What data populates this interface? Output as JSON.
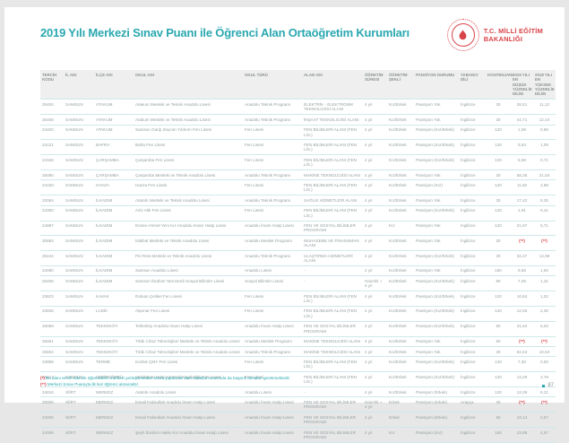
{
  "header": {
    "title": "2019 Yılı Merkezi Sınav Puanı ile Öğrenci Alan Ortaöğretim Kurumları",
    "ministry": {
      "line1": "T.C. MİLLİ EĞİTİM",
      "line2": "BAKANLIĞI"
    }
  },
  "table": {
    "columns": [
      "TERCİH KODU",
      "İL ADI",
      "İLÇE ADI",
      "OKUL ADI",
      "OKUL TÜRÜ",
      "ALAN ADI",
      "ÖĞRETİM SÜRESİ",
      "ÖĞRETİM ŞEKLİ",
      "PANSİYON DURUMU",
      "YABANCI DİLİ",
      "KONTENJANI",
      "2019 YILI EN DÜŞÜK YÜZDELİK DİLİM",
      "2018 YILI EN YÜKSEK YÜZDELİK DİLİM"
    ],
    "col_ids": [
      "tercih-kodu",
      "il-adi",
      "ilce-adi",
      "okul-adi",
      "okul-turu",
      "alan-adi",
      "ogretim-suresi",
      "ogretim-sekli",
      "pansiyon-durumu",
      "yabanci-dili",
      "kontenjan",
      "dilim-2019",
      "dilim-2018"
    ],
    "rows": [
      [
        "25404",
        "SAMSUN",
        "ATAKUM",
        "Atakum Mesleki ve Teknik Anadolu Lisesi",
        "Anadolu Teknik Programı",
        "ELEKTRİK - ELEKTRONİK TEKNOLOJİSİ ALANI",
        "4 yıl",
        "Kız/Erkek",
        "Pansiyon Yok",
        "İngilizce",
        "30",
        "28,51",
        "11,12"
      ],
      [
        "25408",
        "SAMSUN",
        "ATAKUM",
        "Atakum Mesleki ve Teknik Anadolu Lisesi",
        "Anadolu Teknik Programı",
        "İNŞAAT TEKNOLOJİSİ ALANI",
        "4 yıl",
        "Kız/Erkek",
        "Pansiyon Yok",
        "İngilizce",
        "30",
        "44,71",
        "12,44"
      ],
      [
        "24400",
        "SAMSUN",
        "ATAKUM",
        "Samsun Garip Zeycan Yıldırım Fen Lisesi",
        "Fen Lisesi",
        "FEN BİLİMLERİ ALANI (FEN LİS.)",
        "4 yıl",
        "Kız/Erkek",
        "Pansiyon (Kız/Erkek)",
        "İngilizce",
        "120",
        "1,08",
        "0,85"
      ],
      [
        "24131",
        "SAMSUN",
        "BAFRA",
        "Bafra Fen Lisesi",
        "Fen Lisesi",
        "FEN BİLİMLERİ ALANI (FEN LİS.)",
        "4 yıl",
        "Kız/Erkek",
        "Pansiyon (Kız/Erkek)",
        "İngilizce",
        "120",
        "5,84",
        "1,09"
      ],
      [
        "24346",
        "SAMSUN",
        "ÇARŞAMBA",
        "Çarşamba Fen Lisesi",
        "Fen Lisesi",
        "FEN BİLİMLERİ ALANI (FEN LİS.)",
        "4 yıl",
        "Kız/Erkek",
        "Pansiyon (Kız/Erkek)",
        "İngilizce",
        "120",
        "5,58",
        "0,71"
      ],
      [
        "25090",
        "SAMSUN",
        "ÇARŞAMBA",
        "Çarşamba Mesleki ve Teknik Anadolu Lisesi",
        "Anadolu Teknik Programı",
        "MAKİNE TEKNOLOJİSİ ALANI",
        "4 yıl",
        "Kız/Erkek",
        "Pansiyon Yok",
        "İngilizce",
        "30",
        "58,36",
        "21,00"
      ],
      [
        "24150",
        "SAMSUN",
        "HAVZA",
        "Havza Fen Lisesi",
        "Fen Lisesi",
        "FEN BİLİMLERİ ALANI (FEN LİS.)",
        "4 yıl",
        "Kız/Erkek",
        "Pansiyon (Kız)",
        "İngilizce",
        "120",
        "11,92",
        "2,88"
      ],
      [
        "22084",
        "SAMSUN",
        "İLKADIM",
        "Atatürk Mesleki ve Teknik Anadolu Lisesi",
        "Anadolu Teknik Programı",
        "SAĞLIK HİZMETLERİ ALANI",
        "4 yıl",
        "Kız/Erkek",
        "Pansiyon Yok",
        "İngilizce",
        "30",
        "17,42",
        "8,30"
      ],
      [
        "24350",
        "SAMSUN",
        "İLKADIM",
        "Aziz Atik Fen Lisesi",
        "Fen Lisesi",
        "FEN BİLİMLERİ ALANI (FEN LİS.)",
        "4 yıl",
        "Kız/Erkek",
        "Pansiyon (Kız/Erkek)",
        "İngilizce",
        "120",
        "1,91",
        "0,41"
      ],
      [
        "24887",
        "SAMSUN",
        "İLKADIM",
        "Emine-Ahmet Yeni Kız Anadolu İmam Hatip Lisesi",
        "Anadolu İmam Hatip Lisesi",
        "FEN VE SOSYAL BİLİMLER PROGRAMI",
        "4 yıl",
        "Kız",
        "Pansiyon Yok",
        "İngilizce",
        "120",
        "21,97",
        "5,71"
      ],
      [
        "30884",
        "SAMSUN",
        "İLKADIM",
        "İstikbal Mesleki ve Teknik Anadolu Lisesi",
        "Anadolu Meslek Programı",
        "MUHASEBE VE FİNANSMAN ALANI",
        "4 yıl",
        "Kız/Erkek",
        "Pansiyon Yok",
        "İngilizce",
        "30",
        "(**)",
        "(**)"
      ],
      [
        "25444",
        "SAMSUN",
        "İLKADIM",
        "Piri Reis Mesleki ve Teknik Anadolu Lisesi",
        "Anadolu Teknik Programı",
        "ULAŞTIRMA HİZMETLERİ ALANI",
        "4 yıl",
        "Kız/Erkek",
        "Pansiyon (Kız/Erkek)",
        "İngilizce",
        "30",
        "32,47",
        "14,98"
      ],
      [
        "24080",
        "SAMSUN",
        "İLKADIM",
        "Samsun Anadolu Lisesi",
        "Anadolu Lisesi",
        "-",
        "4 yıl",
        "Kız/Erkek",
        "Pansiyon Yok",
        "İngilizce",
        "150",
        "5,56",
        "1,92"
      ],
      [
        "25405",
        "SAMSUN",
        "İLKADIM",
        "Samsun İbrahim Tanrıverdi Sosyal Bilimler Lisesi",
        "Sosyal Bilimler Lisesi",
        "-",
        "Hazırlık + 4 yıl",
        "Kız/Erkek",
        "Pansiyon (Kız/Erkek)",
        "İngilizce",
        "90",
        "7,25",
        "1,31"
      ],
      [
        "23823",
        "SAMSUN",
        "KAVAK",
        "Rıdvan Çelikel Fen Lisesi",
        "Fen Lisesi",
        "FEN BİLİMLERİ ALANI (FEN LİS.)",
        "4 yıl",
        "Kız/Erkek",
        "Pansiyon (Kız/Erkek)",
        "İngilizce",
        "120",
        "10,84",
        "1,02"
      ],
      [
        "23928",
        "SAMSUN",
        "LADİK",
        "Akpınar Fen Lisesi",
        "Fen Lisesi",
        "FEN BİLİMLERİ ALANI (FEN LİS.)",
        "4 yıl",
        "Kız/Erkek",
        "Pansiyon (Kız/Erkek)",
        "İngilizce",
        "120",
        "12,93",
        "2,30"
      ],
      [
        "25098",
        "SAMSUN",
        "TEKKEKÖY",
        "Tekkeköy Anadolu İmam Hatip Lisesi",
        "Anadolu İmam Hatip Lisesi",
        "FEN VE SOSYAL BİLİMLER PROGRAMI",
        "4 yıl",
        "Kız/Erkek",
        "Pansiyon (Kız/Erkek)",
        "İngilizce",
        "90",
        "21,84",
        "6,63"
      ],
      [
        "25651",
        "SAMSUN",
        "TEKKEKÖY",
        "Tıbbi Cihaz Teknolojileri Mesleki ve Teknik Anadolu Lisesi",
        "Anadolu Meslek Programı",
        "MAKİNE TEKNOLOJİSİ ALANI",
        "4 yıl",
        "Kız/Erkek",
        "Pansiyon Yok",
        "İngilizce",
        "60",
        "(**)",
        "(**)"
      ],
      [
        "25604",
        "SAMSUN",
        "TEKKEKÖY",
        "Tıbbi Cihaz Teknolojileri Mesleki ve Teknik Anadolu Lisesi",
        "Anadolu Teknik Programı",
        "MAKİNE TEKNOLOJİSİ ALANI",
        "4 yıl",
        "Kız/Erkek",
        "Pansiyon Yok",
        "İngilizce",
        "30",
        "82,53",
        "10,84"
      ],
      [
        "23885",
        "SAMSUN",
        "TERME",
        "Kozluk ÇMY Fen Lisesi",
        "Fen Lisesi",
        "FEN BİLİMLERİ ALANI (FEN LİS.)",
        "4 yıl",
        "Kız/Erkek",
        "Pansiyon (Kız/Erkek)",
        "İngilizce",
        "120",
        "7,30",
        "0,92"
      ],
      [
        "24417",
        "SAMSUN",
        "VEZİRKÖPRÜ",
        "Vezirköprü Hatice-Kemal Kayalıoğlu Fen Lisesi",
        "Fen Lisesi",
        "FEN BİLİMLERİ ALANI (FEN LİS.)",
        "4 yıl",
        "Kız/Erkek",
        "Pansiyon (Kız/Erkek)",
        "İngilizce",
        "120",
        "13,29",
        "2,78"
      ],
      [
        "24816",
        "SİİRT",
        "MERKEZ",
        "Atatürk Anadolu Lisesi",
        "Anadolu Lisesi",
        "-",
        "4 yıl",
        "Kız/Erkek",
        "Pansiyon (Erkek)",
        "İngilizce",
        "120",
        "12,09",
        "6,21"
      ],
      [
        "20005",
        "SİİRT",
        "MERKEZ",
        "İsmail Fakirullah Anadolu İmam Hatip Lisesi",
        "Anadolu İmam Hatip Lisesi",
        "FEN VE SOSYAL BİLİMLER PROGRAMI",
        "Hazırlık + 4 yıl",
        "Erkek",
        "Pansiyon (Erkek)",
        "Arapça",
        "30",
        "(**)",
        "(**)"
      ],
      [
        "24005",
        "SİİRT",
        "MERKEZ",
        "İsmail Fakirullah Anadolu İmam Hatip Lisesi",
        "Anadolu İmam Hatip Lisesi",
        "FEN VE SOSYAL BİLİMLER PROGRAMI",
        "4 yıl",
        "Erkek",
        "Pansiyon (Erkek)",
        "İngilizce",
        "90",
        "43,14",
        "0,87"
      ],
      [
        "24006",
        "SİİRT",
        "MERKEZ",
        "Şeyh İbrahim Hakkı Kız Anadolu İmam Hatip Lisesi",
        "Anadolu İmam Hatip Lisesi",
        "FEN VE SOSYAL BİLİMLER PROGRAMI",
        "4 yıl",
        "Kız",
        "Pansiyon (Kız)",
        "İngilizce",
        "150",
        "23,98",
        "4,87"
      ]
    ]
  },
  "footnotes": [
    {
      "marker": "(*)",
      "text": "Bu alanı tercih edecek öğrencilerin merkezi yerleştirmeden sonra yapılacak olan mülakat sınavında da başarılı olmaları gerekmektedir."
    },
    {
      "marker": "(**)",
      "text": "Merkezi Sınav Puanıyla ilk kez öğrenci alınacaktır."
    }
  ],
  "page_number": "87",
  "colors": {
    "teal": "#2AA8B0",
    "red": "#D9444A",
    "header_bg": "#EFEFEF",
    "row_border": "#CFE8EA",
    "body_text": "#96A1A1"
  }
}
